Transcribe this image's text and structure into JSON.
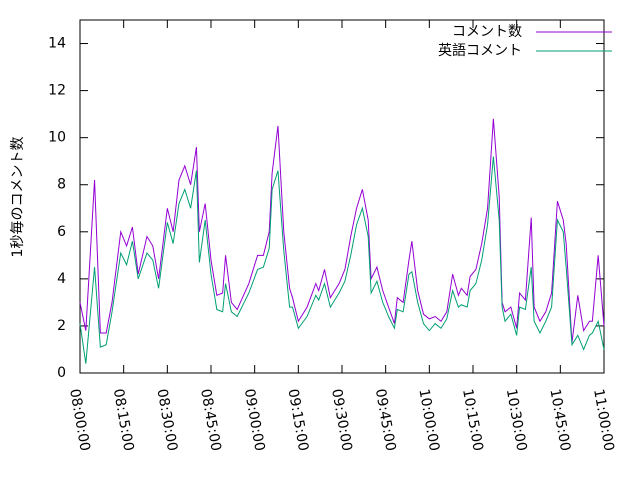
{
  "chart_data": {
    "type": "line",
    "ylabel": "1秒毎のコメント数",
    "xlim": [
      "08:00:00",
      "11:00:00"
    ],
    "xticks": [
      "08:00:00",
      "08:15:00",
      "08:30:00",
      "08:45:00",
      "09:00:00",
      "09:15:00",
      "09:30:00",
      "09:45:00",
      "10:00:00",
      "10:15:00",
      "10:30:00",
      "10:45:00",
      "11:00:00"
    ],
    "ylim": [
      0,
      15
    ],
    "yticks": [
      0,
      2,
      4,
      6,
      8,
      10,
      12,
      14
    ],
    "legend": "top-right",
    "x": [
      "08:00:00",
      "08:02:00",
      "08:05:00",
      "08:07:00",
      "08:09:00",
      "08:11:00",
      "08:14:00",
      "08:16:00",
      "08:18:00",
      "08:20:00",
      "08:23:00",
      "08:25:00",
      "08:27:00",
      "08:30:00",
      "08:32:00",
      "08:34:00",
      "08:36:00",
      "08:38:00",
      "08:40:00",
      "08:41:00",
      "08:43:00",
      "08:45:00",
      "08:47:00",
      "08:49:00",
      "08:50:00",
      "08:52:00",
      "08:54:00",
      "08:58:00",
      "09:01:00",
      "09:03:00",
      "09:05:00",
      "09:06:00",
      "09:08:00",
      "09:10:00",
      "09:12:00",
      "09:13:00",
      "09:15:00",
      "09:18:00",
      "09:21:00",
      "09:22:00",
      "09:24:00",
      "09:26:00",
      "09:29:00",
      "09:31:00",
      "09:33:00",
      "09:35:00",
      "09:37:00",
      "09:39:00",
      "09:40:00",
      "09:42:00",
      "09:44:00",
      "09:46:00",
      "09:48:00",
      "09:49:00",
      "09:51:00",
      "09:53:00",
      "09:54:00",
      "09:56:00",
      "09:58:00",
      "10:00:00",
      "10:02:00",
      "10:04:00",
      "10:06:00",
      "10:08:00",
      "10:10:00",
      "10:11:00",
      "10:13:00",
      "10:14:00",
      "10:16:00",
      "10:18:00",
      "10:20:00",
      "10:22:00",
      "10:24:00",
      "10:25:00",
      "10:26:00",
      "10:28:00",
      "10:30:00",
      "10:31:00",
      "10:33:00",
      "10:35:00",
      "10:36:00",
      "10:38:00",
      "10:40:00",
      "10:42:00",
      "10:44:00",
      "10:46:00",
      "10:47:00",
      "10:49:00",
      "10:51:00",
      "10:53:00",
      "10:55:00",
      "10:56:00",
      "10:58:00",
      "11:00:00"
    ],
    "series": [
      {
        "name": "コメント数",
        "color": "#9400d3",
        "values": [
          3.0,
          1.8,
          8.2,
          1.7,
          1.7,
          3.0,
          6.0,
          5.4,
          6.2,
          4.2,
          5.8,
          5.4,
          4.0,
          7.0,
          6.0,
          8.2,
          8.8,
          8.0,
          9.6,
          6.0,
          7.2,
          4.8,
          3.3,
          3.4,
          5.0,
          3.0,
          2.7,
          3.8,
          5.0,
          5.0,
          6.0,
          8.5,
          10.5,
          6.0,
          3.6,
          3.2,
          2.2,
          2.8,
          3.8,
          3.5,
          4.4,
          3.2,
          3.8,
          4.4,
          5.8,
          7.0,
          7.8,
          6.5,
          4.0,
          4.5,
          3.5,
          2.8,
          2.1,
          3.2,
          3.0,
          4.8,
          5.6,
          3.5,
          2.5,
          2.3,
          2.4,
          2.2,
          2.6,
          4.2,
          3.3,
          3.6,
          3.3,
          4.1,
          4.4,
          5.5,
          7.0,
          10.8,
          7.5,
          3.0,
          2.6,
          2.8,
          1.9,
          3.4,
          3.1,
          6.6,
          2.8,
          2.2,
          2.6,
          3.4,
          7.3,
          6.5,
          5.5,
          1.3,
          3.3,
          1.8,
          2.2,
          2.2,
          5.0,
          2.0
        ]
      },
      {
        "name": "英語コメント",
        "color": "#009e73",
        "values": [
          2.1,
          0.4,
          4.5,
          1.1,
          1.2,
          2.6,
          5.1,
          4.6,
          5.6,
          4.0,
          5.1,
          4.8,
          3.6,
          6.4,
          5.5,
          7.2,
          7.8,
          7.0,
          8.6,
          4.7,
          6.5,
          4.2,
          2.7,
          2.6,
          3.8,
          2.6,
          2.4,
          3.4,
          4.4,
          4.5,
          5.3,
          7.8,
          8.6,
          5.2,
          2.8,
          2.8,
          1.9,
          2.4,
          3.3,
          3.1,
          3.8,
          2.8,
          3.4,
          3.9,
          5.0,
          6.3,
          7.0,
          5.8,
          3.4,
          3.9,
          3.0,
          2.4,
          1.9,
          2.7,
          2.6,
          4.2,
          4.3,
          3.0,
          2.1,
          1.8,
          2.1,
          1.9,
          2.3,
          3.5,
          2.8,
          2.9,
          2.8,
          3.5,
          3.8,
          4.8,
          6.3,
          9.2,
          6.5,
          2.8,
          2.2,
          2.5,
          1.6,
          2.8,
          2.7,
          4.5,
          2.2,
          1.7,
          2.2,
          2.8,
          6.5,
          6.0,
          4.5,
          1.2,
          1.6,
          1.0,
          1.6,
          1.7,
          2.2,
          1.0
        ]
      }
    ]
  }
}
